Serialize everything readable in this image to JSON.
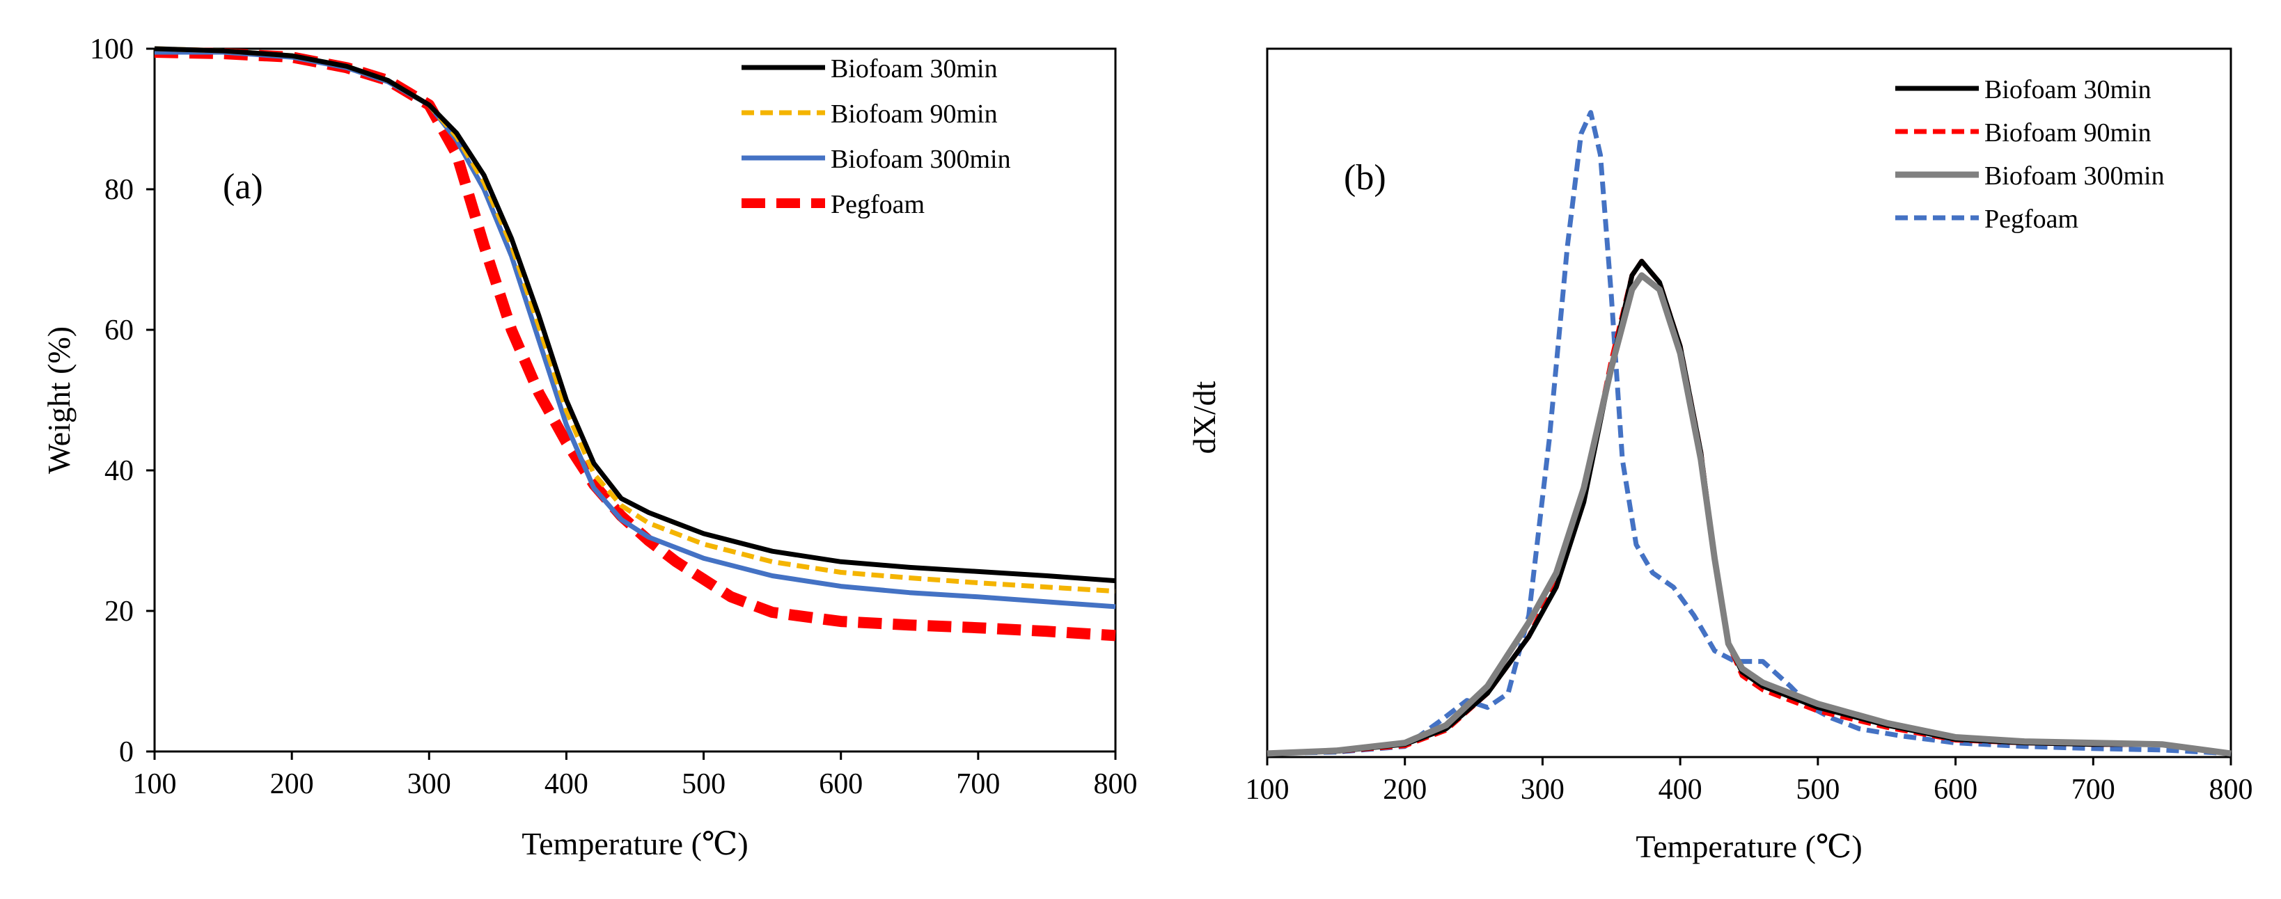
{
  "chart_data": [
    {
      "id": "a",
      "type": "line",
      "panel_label": "(a)",
      "xlabel": "Temperature (℃)",
      "ylabel": "Weight (%)",
      "xlim": [
        100,
        800
      ],
      "ylim": [
        0,
        100
      ],
      "xticks": [
        100,
        200,
        300,
        400,
        500,
        600,
        700,
        800
      ],
      "yticks": [
        0,
        20,
        40,
        60,
        80,
        100
      ],
      "grid": false,
      "legend_position": "top-right",
      "series": [
        {
          "name": "Biofoam 30min",
          "color": "#000000",
          "style": "solid",
          "x": [
            100,
            150,
            200,
            240,
            270,
            300,
            320,
            340,
            360,
            380,
            400,
            420,
            440,
            460,
            480,
            500,
            550,
            600,
            650,
            700,
            750,
            800
          ],
          "y": [
            100,
            99.7,
            99,
            97.5,
            95.5,
            92,
            88,
            82,
            73,
            62,
            50,
            41,
            36,
            34,
            32.5,
            31,
            28.5,
            27,
            26.2,
            25.6,
            25,
            24.3
          ]
        },
        {
          "name": "Biofoam 90min",
          "color": "#F4B400",
          "style": "dashed",
          "x": [
            100,
            150,
            200,
            240,
            270,
            300,
            320,
            340,
            360,
            380,
            400,
            420,
            440,
            460,
            480,
            500,
            550,
            600,
            650,
            700,
            750,
            800
          ],
          "y": [
            100,
            99.7,
            99,
            97.5,
            95.5,
            92,
            87.5,
            81,
            72,
            60.5,
            48.5,
            39.5,
            35,
            32.5,
            31,
            29.5,
            27,
            25.5,
            24.7,
            24,
            23.4,
            22.8
          ]
        },
        {
          "name": "Biofoam 300min",
          "color": "#4472C4",
          "style": "solid",
          "x": [
            100,
            150,
            200,
            240,
            270,
            300,
            320,
            340,
            360,
            380,
            400,
            420,
            440,
            460,
            480,
            500,
            550,
            600,
            650,
            700,
            750,
            800
          ],
          "y": [
            99.5,
            99.5,
            98.8,
            97.3,
            95.3,
            92,
            87,
            80,
            70.5,
            58.5,
            46.5,
            37.5,
            33,
            30.5,
            29,
            27.5,
            25,
            23.5,
            22.6,
            22,
            21.3,
            20.6
          ]
        },
        {
          "name": "Pegfoam",
          "color": "#FF0000",
          "style": "dashed-thick",
          "x": [
            100,
            150,
            200,
            240,
            270,
            300,
            320,
            340,
            360,
            380,
            400,
            420,
            440,
            460,
            480,
            500,
            520,
            550,
            600,
            650,
            700,
            750,
            800
          ],
          "y": [
            99.5,
            99.3,
            98.8,
            97.3,
            95.5,
            92,
            85,
            72,
            60,
            51,
            44,
            38,
            33.5,
            30,
            27,
            24.5,
            22,
            19.8,
            18.5,
            18,
            17.6,
            17.1,
            16.5
          ]
        }
      ]
    },
    {
      "id": "b",
      "type": "line",
      "panel_label": "(b)",
      "xlabel": "Temperature (℃)",
      "ylabel": "dX/dt",
      "xlim": [
        100,
        800
      ],
      "ylim": [
        0,
        1
      ],
      "xticks": [
        100,
        200,
        300,
        400,
        500,
        600,
        700,
        800
      ],
      "yticks": [],
      "grid": false,
      "legend_position": "top-right",
      "series": [
        {
          "name": "Biofoam 30min",
          "color": "#000000",
          "style": "solid",
          "x": [
            100,
            150,
            200,
            230,
            260,
            290,
            310,
            330,
            350,
            365,
            372,
            385,
            400,
            415,
            425,
            435,
            445,
            460,
            500,
            550,
            600,
            650,
            700,
            750,
            800
          ],
          "y": [
            0.005,
            0.008,
            0.018,
            0.04,
            0.09,
            0.17,
            0.24,
            0.36,
            0.55,
            0.68,
            0.7,
            0.67,
            0.58,
            0.43,
            0.28,
            0.16,
            0.12,
            0.1,
            0.07,
            0.045,
            0.025,
            0.02,
            0.018,
            0.018,
            0.005
          ]
        },
        {
          "name": "Biofoam 90min",
          "color": "#FF0000",
          "style": "dashed",
          "x": [
            100,
            150,
            200,
            230,
            260,
            290,
            310,
            330,
            350,
            365,
            372,
            385,
            400,
            415,
            425,
            435,
            445,
            460,
            500,
            550,
            600,
            650,
            700,
            750,
            800
          ],
          "y": [
            0.005,
            0.008,
            0.016,
            0.038,
            0.09,
            0.17,
            0.25,
            0.37,
            0.56,
            0.68,
            0.7,
            0.67,
            0.58,
            0.43,
            0.28,
            0.16,
            0.115,
            0.095,
            0.065,
            0.042,
            0.024,
            0.02,
            0.018,
            0.018,
            0.005
          ]
        },
        {
          "name": "Biofoam 300min",
          "color": "#808080",
          "style": "solid-thick",
          "x": [
            100,
            150,
            200,
            230,
            260,
            290,
            310,
            330,
            350,
            365,
            372,
            385,
            400,
            415,
            425,
            435,
            445,
            460,
            500,
            550,
            600,
            650,
            700,
            750,
            800
          ],
          "y": [
            0.005,
            0.009,
            0.02,
            0.045,
            0.1,
            0.19,
            0.26,
            0.38,
            0.55,
            0.66,
            0.68,
            0.66,
            0.57,
            0.42,
            0.28,
            0.16,
            0.125,
            0.105,
            0.075,
            0.048,
            0.028,
            0.022,
            0.02,
            0.018,
            0.005
          ]
        },
        {
          "name": "Pegfoam",
          "color": "#4472C4",
          "style": "dashed",
          "x": [
            100,
            150,
            200,
            225,
            245,
            260,
            275,
            290,
            305,
            318,
            328,
            335,
            342,
            350,
            358,
            368,
            380,
            395,
            410,
            425,
            440,
            460,
            480,
            495,
            510,
            530,
            560,
            600,
            650,
            700,
            750,
            800
          ],
          "y": [
            0.005,
            0.007,
            0.015,
            0.05,
            0.08,
            0.07,
            0.09,
            0.2,
            0.45,
            0.72,
            0.88,
            0.91,
            0.85,
            0.65,
            0.42,
            0.3,
            0.26,
            0.24,
            0.2,
            0.15,
            0.135,
            0.135,
            0.1,
            0.07,
            0.055,
            0.04,
            0.03,
            0.02,
            0.015,
            0.012,
            0.01,
            0.005
          ]
        }
      ]
    }
  ]
}
